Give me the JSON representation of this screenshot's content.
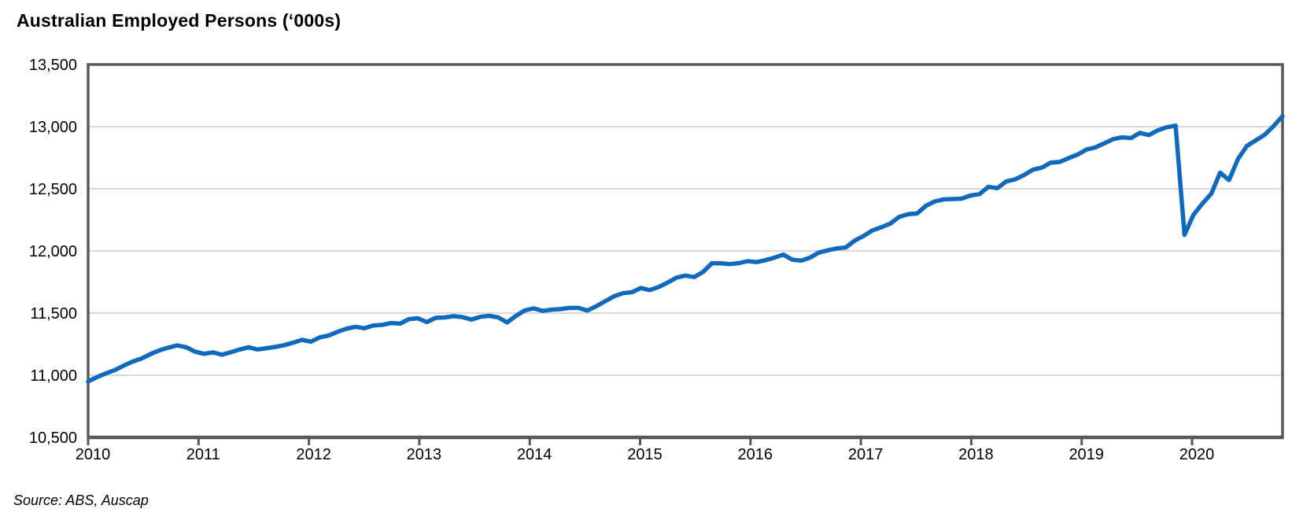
{
  "chart": {
    "title": "Australian Employed Persons (‘000s)",
    "source_note": "Source: ABS, Auscap"
  },
  "colors": {
    "line": "#1169BE",
    "frame": "#595959",
    "gridline": "#D9D9D9",
    "tick_label": "#000000",
    "background": "#FFFFFF"
  },
  "chart_data": {
    "type": "line",
    "title": "Australian Employed Persons (‘000s)",
    "xlabel": "",
    "ylabel": "",
    "ylim": [
      10500,
      13500
    ],
    "ytick_interval": 500,
    "ytick_labels": [
      "13,500",
      "13,000",
      "12,500",
      "12,000",
      "11,500",
      "11,000",
      "10,500"
    ],
    "xtick_labels": [
      "2010",
      "2011",
      "2012",
      "2013",
      "2014",
      "2015",
      "2016",
      "2017",
      "2018",
      "2019",
      "2020"
    ],
    "grid": "horizontal-only",
    "legend": "none",
    "source": "Source: ABS, Auscap",
    "series": [
      {
        "name": "Australian Employed Persons ('000s)",
        "frequency": "monthly",
        "x_start": "2010-01",
        "x_end_as_drawn": "late 2020",
        "values": [
          10950,
          10985,
          11015,
          11042,
          11078,
          11110,
          11135,
          11170,
          11200,
          11222,
          11240,
          11225,
          11190,
          11172,
          11184,
          11165,
          11185,
          11207,
          11225,
          11207,
          11218,
          11228,
          11242,
          11262,
          11285,
          11270,
          11305,
          11320,
          11350,
          11375,
          11390,
          11378,
          11400,
          11405,
          11420,
          11415,
          11452,
          11458,
          11428,
          11462,
          11465,
          11475,
          11468,
          11448,
          11470,
          11478,
          11466,
          11425,
          11478,
          11522,
          11538,
          11518,
          11528,
          11532,
          11542,
          11542,
          11520,
          11555,
          11595,
          11635,
          11660,
          11668,
          11702,
          11685,
          11710,
          11745,
          11785,
          11802,
          11790,
          11832,
          11902,
          11900,
          11894,
          11902,
          11918,
          11910,
          11926,
          11946,
          11970,
          11930,
          11922,
          11946,
          11988,
          12005,
          12021,
          12028,
          12083,
          12121,
          12166,
          12191,
          12220,
          12275,
          12296,
          12301,
          12364,
          12399,
          12415,
          12418,
          12421,
          12446,
          12457,
          12516,
          12505,
          12559,
          12576,
          12611,
          12654,
          12670,
          12711,
          12716,
          12747,
          12775,
          12816,
          12833,
          12866,
          12900,
          12914,
          12908,
          12950,
          12932,
          12970,
          12995,
          13008,
          12130,
          12290,
          12380,
          12460,
          12630,
          12570,
          12740,
          12845,
          12890,
          12935,
          13005,
          13085
        ]
      }
    ]
  }
}
